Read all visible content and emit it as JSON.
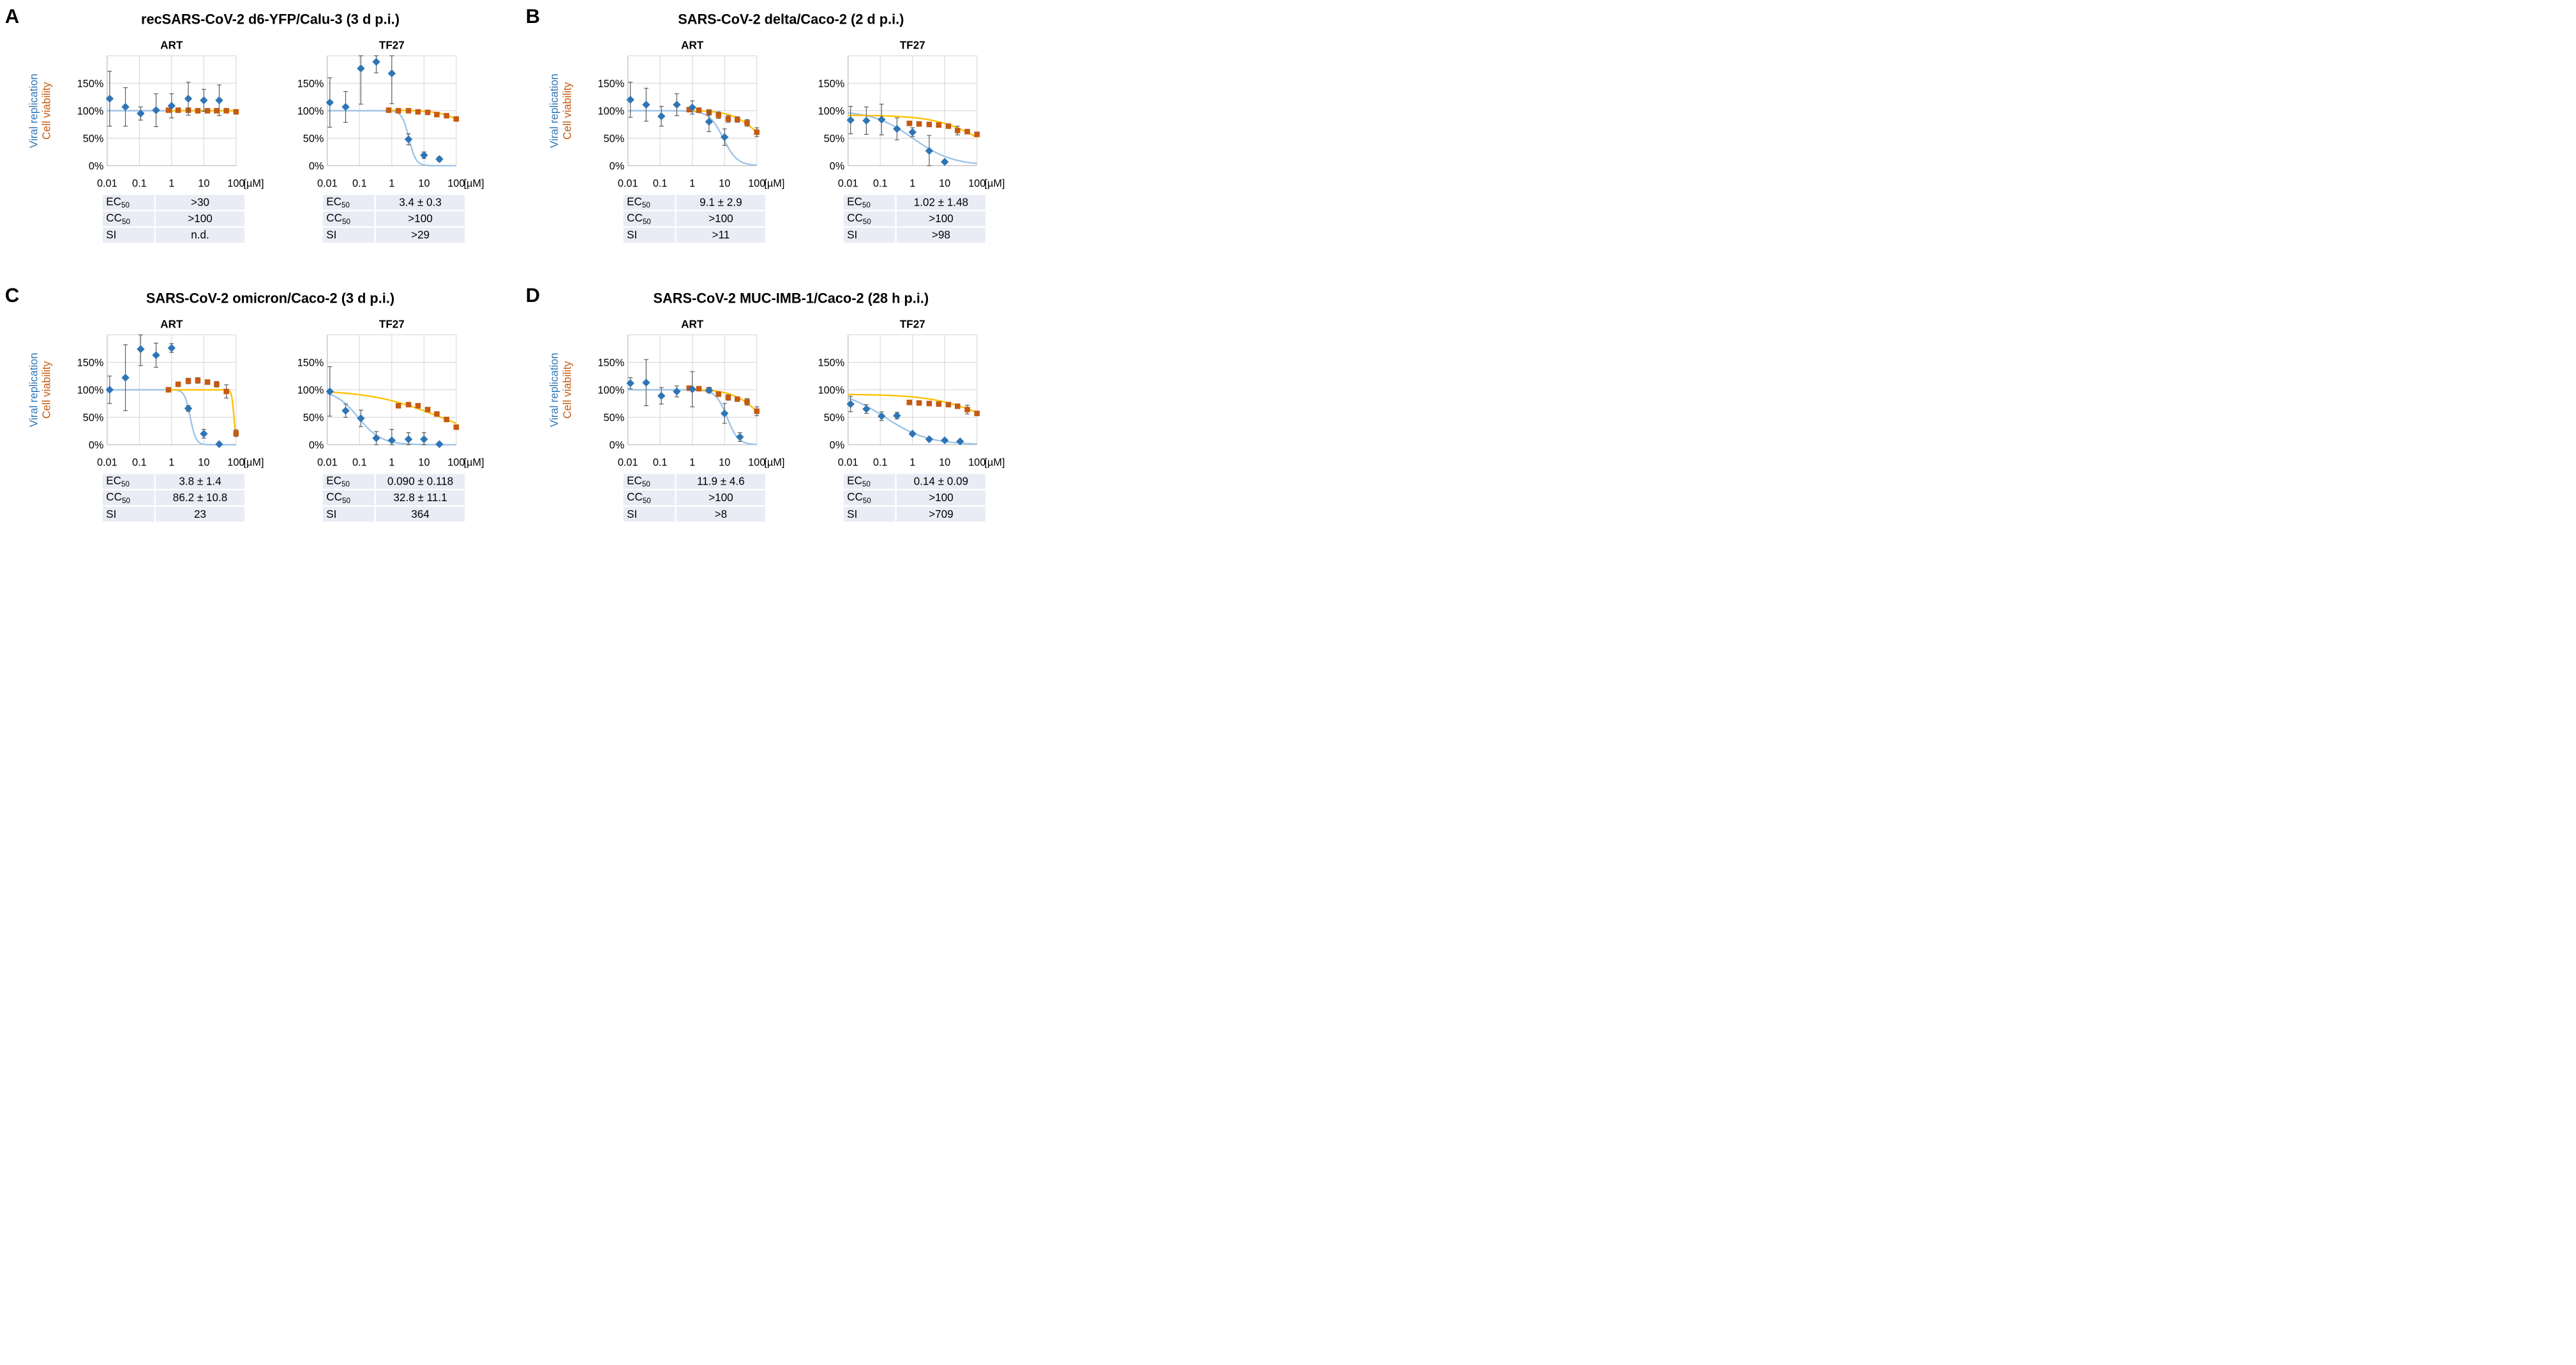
{
  "axis": {
    "y_ticks": [
      "0%",
      "50%",
      "100%",
      "150%"
    ],
    "x_ticks": [
      "0.01",
      "0.1",
      "1",
      "10",
      "100"
    ],
    "unit": "[µM]",
    "ylabel_replication": "Viral replication",
    "ylabel_viability": "Cell viability"
  },
  "colors": {
    "replication": "#2e75b6",
    "replication_fit": "#9dc3e6",
    "viability": "#c55a11",
    "viability_fit": "#ffc000",
    "grid": "#d9d9d9"
  },
  "stat_labels": {
    "ec_main": "EC",
    "cc_main": "CC",
    "sub": "50",
    "si": "SI"
  },
  "panels": [
    {
      "letter": "A",
      "title": "recSARS-CoV-2 d6-YFP/Calu-3 (3 d p.i.)",
      "left": {
        "name": "ART",
        "ec50": ">30",
        "cc50": ">100",
        "si": "n.d."
      },
      "right": {
        "name": "TF27",
        "ec50": "3.4 ± 0.3",
        "cc50": ">100",
        "si": ">29"
      }
    },
    {
      "letter": "B",
      "title": "SARS-CoV-2 delta/Caco-2 (2 d p.i.)",
      "left": {
        "name": "ART",
        "ec50": "9.1 ± 2.9",
        "cc50": ">100",
        "si": ">11"
      },
      "right": {
        "name": "TF27",
        "ec50": "1.02 ± 1.48",
        "cc50": ">100",
        "si": ">98"
      }
    },
    {
      "letter": "C",
      "title": "SARS-CoV-2 omicron/Caco-2 (3 d p.i.)",
      "left": {
        "name": "ART",
        "ec50": "3.8 ± 1.4",
        "cc50": "86.2 ± 10.8",
        "si": "23"
      },
      "right": {
        "name": "TF27",
        "ec50": "0.090 ± 0.118",
        "cc50": "32.8 ± 11.1",
        "si": "364"
      }
    },
    {
      "letter": "D",
      "title": "SARS-CoV-2 MUC-IMB-1/Caco-2 (28 h p.i.)",
      "left": {
        "name": "ART",
        "ec50": "11.9 ± 4.6",
        "cc50": ">100",
        "si": ">8"
      },
      "right": {
        "name": "TF27",
        "ec50": "0.14 ± 0.09",
        "cc50": ">100",
        "si": ">709"
      }
    }
  ],
  "chart_data": [
    {
      "type": "scatter",
      "panel": "A",
      "title": "ART",
      "xlabel": "[µM]",
      "ylabel": "Viral replication / Cell viability",
      "xscale": "log",
      "xlim": [
        0.01,
        100
      ],
      "ylim": [
        0,
        200
      ],
      "replication": {
        "x": [
          0.012,
          0.037,
          0.11,
          0.33,
          1,
          3.3,
          10,
          30
        ],
        "y": [
          122,
          107,
          95,
          101,
          109,
          122,
          119,
          119
        ],
        "err": [
          50,
          35,
          12,
          30,
          22,
          30,
          20,
          28
        ]
      },
      "viability": {
        "x": [
          0.8,
          1.6,
          3.3,
          6.5,
          13,
          25,
          50,
          100
        ],
        "y": [
          101,
          101,
          101,
          100,
          100,
          100,
          100,
          98
        ],
        "err": [
          3,
          3,
          3,
          3,
          3,
          3,
          3,
          3
        ]
      },
      "replication_fit": {
        "top": 100,
        "ic50": 100000,
        "hill": 1
      },
      "viability_fit": {
        "top": 100,
        "ic50": 100000,
        "hill": 1,
        "xmin": 0.8
      }
    },
    {
      "type": "scatter",
      "panel": "A",
      "title": "TF27",
      "xlabel": "[µM]",
      "ylabel": "Viral replication / Cell viability",
      "xscale": "log",
      "xlim": [
        0.01,
        100
      ],
      "ylim": [
        0,
        200
      ],
      "replication": {
        "x": [
          0.012,
          0.037,
          0.11,
          0.33,
          1,
          3.3,
          10,
          30
        ],
        "y": [
          115,
          107,
          177,
          189,
          168,
          48,
          19,
          12
        ],
        "err": [
          45,
          28,
          65,
          20,
          55,
          10,
          6,
          4
        ]
      },
      "viability": {
        "x": [
          0.8,
          1.6,
          3.3,
          6.5,
          13,
          25,
          50,
          100
        ],
        "y": [
          101,
          100,
          100,
          98,
          97,
          93,
          91,
          85
        ],
        "err": [
          3,
          3,
          3,
          3,
          3,
          3,
          3,
          4
        ]
      },
      "replication_fit": {
        "top": 100,
        "ic50": 3.4,
        "hill": 4
      },
      "viability_fit": {
        "top": 101,
        "ic50": 500,
        "hill": 1,
        "xmin": 0.8
      }
    },
    {
      "type": "scatter",
      "panel": "B",
      "title": "ART",
      "xlabel": "[µM]",
      "ylabel": "Viral replication / Cell viability",
      "xscale": "log",
      "xlim": [
        0.01,
        100
      ],
      "ylim": [
        0,
        200
      ],
      "replication": {
        "x": [
          0.012,
          0.037,
          0.11,
          0.33,
          1,
          3.3,
          10
        ],
        "y": [
          120,
          111,
          90,
          111,
          106,
          80,
          52
        ],
        "err": [
          32,
          30,
          18,
          20,
          12,
          18,
          15
        ]
      },
      "viability": {
        "x": [
          0.8,
          1.6,
          3.3,
          6.5,
          13,
          25,
          50,
          100
        ],
        "y": [
          102,
          101,
          97,
          92,
          85,
          84,
          78,
          61
        ],
        "err": [
          3,
          4,
          5,
          6,
          6,
          5,
          6,
          8
        ]
      },
      "replication_fit": {
        "top": 100,
        "ic50": 9.1,
        "hill": 2
      },
      "viability_fit": {
        "top": 101,
        "ic50": 150,
        "hill": 1,
        "xmin": 0.8
      }
    },
    {
      "type": "scatter",
      "panel": "B",
      "title": "TF27",
      "xlabel": "[µM]",
      "ylabel": "Viral replication / Cell viability",
      "xscale": "log",
      "xlim": [
        0.01,
        100
      ],
      "ylim": [
        0,
        200
      ],
      "replication": {
        "x": [
          0.012,
          0.037,
          0.11,
          0.33,
          1,
          3.3,
          10
        ],
        "y": [
          83,
          82,
          84,
          67,
          61,
          27,
          7
        ],
        "err": [
          25,
          25,
          28,
          20,
          8,
          28,
          3
        ]
      },
      "viability": {
        "x": [
          0.8,
          1.6,
          3.3,
          6.5,
          13,
          25,
          50,
          100
        ],
        "y": [
          77,
          76,
          75,
          74,
          72,
          64,
          62,
          57
        ],
        "err": [
          3,
          3,
          3,
          3,
          4,
          8,
          4,
          4
        ]
      },
      "replication_fit": {
        "top": 100,
        "ic50": 1.02,
        "hill": 0.7
      },
      "viability_fit": {
        "top": 92,
        "ic50": 150,
        "hill": 0.6,
        "xmin": 0.01
      }
    },
    {
      "type": "scatter",
      "panel": "C",
      "title": "ART",
      "xlabel": "[µM]",
      "ylabel": "Viral replication / Cell viability",
      "xscale": "log",
      "xlim": [
        0.01,
        100
      ],
      "ylim": [
        0,
        200
      ],
      "replication": {
        "x": [
          0.012,
          0.037,
          0.11,
          0.33,
          1,
          3.3,
          10,
          30
        ],
        "y": [
          100,
          122,
          174,
          163,
          176,
          66,
          20,
          1
        ],
        "err": [
          25,
          60,
          30,
          22,
          8,
          5,
          8,
          1
        ]
      },
      "viability": {
        "x": [
          0.8,
          1.6,
          3.3,
          6.5,
          13,
          25,
          50,
          100
        ],
        "y": [
          100,
          110,
          116,
          117,
          114,
          110,
          97,
          21
        ],
        "err": [
          3,
          3,
          5,
          5,
          4,
          5,
          12,
          6
        ]
      },
      "replication_fit": {
        "top": 100,
        "ic50": 3.8,
        "hill": 5
      },
      "viability_fit": {
        "top": 100,
        "ic50": 86.2,
        "hill": 12,
        "xmin": 0.8
      }
    },
    {
      "type": "scatter",
      "panel": "C",
      "title": "TF27",
      "xlabel": "[µM]",
      "ylabel": "Viral replication / Cell viability",
      "xscale": "log",
      "xlim": [
        0.01,
        100
      ],
      "ylim": [
        0,
        200
      ],
      "replication": {
        "x": [
          0.012,
          0.037,
          0.11,
          0.33,
          1,
          3.3,
          10,
          30
        ],
        "y": [
          97,
          62,
          48,
          12,
          8,
          10,
          10,
          1
        ],
        "err": [
          45,
          12,
          15,
          12,
          20,
          12,
          12,
          2
        ]
      },
      "viability": {
        "x": [
          1.6,
          3.3,
          6.5,
          13,
          25,
          50,
          100
        ],
        "y": [
          71,
          73,
          71,
          64,
          56,
          46,
          32
        ],
        "err": [
          3,
          3,
          3,
          3,
          3,
          3,
          4
        ]
      },
      "replication_fit": {
        "top": 100,
        "ic50": 0.09,
        "hill": 1.2
      },
      "viability_fit": {
        "top": 100,
        "ic50": 32.8,
        "hill": 0.4,
        "xmin": 0.01
      }
    },
    {
      "type": "scatter",
      "panel": "D",
      "title": "ART",
      "xlabel": "[µM]",
      "ylabel": "Viral replication / Cell viability",
      "xscale": "log",
      "xlim": [
        0.01,
        100
      ],
      "ylim": [
        0,
        200
      ],
      "replication": {
        "x": [
          0.012,
          0.037,
          0.11,
          0.33,
          1,
          3.3,
          10,
          30
        ],
        "y": [
          112,
          113,
          89,
          97,
          101,
          99,
          57,
          14
        ],
        "err": [
          10,
          42,
          15,
          10,
          32,
          4,
          18,
          8
        ]
      },
      "viability": {
        "x": [
          0.8,
          1.6,
          3.3,
          6.5,
          13,
          25,
          50,
          100
        ],
        "y": [
          103,
          102,
          100,
          92,
          86,
          83,
          78,
          61
        ],
        "err": [
          3,
          3,
          3,
          4,
          5,
          4,
          6,
          8
        ]
      },
      "replication_fit": {
        "top": 100,
        "ic50": 11.9,
        "hill": 2.5
      },
      "viability_fit": {
        "top": 101,
        "ic50": 150,
        "hill": 1,
        "xmin": 0.8
      }
    },
    {
      "type": "scatter",
      "panel": "D",
      "title": "TF27",
      "xlabel": "[µM]",
      "ylabel": "Viral replication / Cell viability",
      "xscale": "log",
      "xlim": [
        0.01,
        100
      ],
      "ylim": [
        0,
        200
      ],
      "replication": {
        "x": [
          0.012,
          0.037,
          0.11,
          0.33,
          1,
          3.3,
          10,
          30
        ],
        "y": [
          74,
          65,
          52,
          53,
          20,
          10,
          8,
          6
        ],
        "err": [
          14,
          8,
          8,
          6,
          3,
          3,
          2,
          2
        ]
      },
      "viability": {
        "x": [
          0.8,
          1.6,
          3.3,
          6.5,
          13,
          25,
          50,
          100
        ],
        "y": [
          77,
          76,
          75,
          74,
          73,
          70,
          64,
          57
        ],
        "err": [
          3,
          3,
          3,
          3,
          3,
          4,
          8,
          4
        ]
      },
      "replication_fit": {
        "top": 100,
        "ic50": 0.14,
        "hill": 0.65
      },
      "viability_fit": {
        "top": 92,
        "ic50": 300,
        "hill": 0.5,
        "xmin": 0.01
      }
    }
  ]
}
